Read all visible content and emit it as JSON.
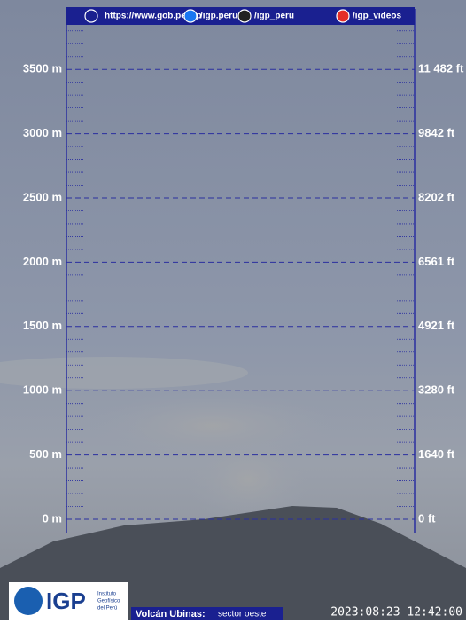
{
  "header": {
    "links": [
      "https://www.gob.pe/igp",
      "/igp.peru",
      "/igp_peru",
      "/igp_videos"
    ]
  },
  "scale": {
    "left": [
      "0 m",
      "500 m",
      "1000 m",
      "1500 m",
      "2000 m",
      "2500 m",
      "3000 m",
      "3500 m"
    ],
    "right": [
      "0 ft",
      "1640 ft",
      "3280 ft",
      "4921 ft",
      "6561 ft",
      "8202 ft",
      "9842 ft",
      "11 482 ft"
    ]
  },
  "footer": {
    "logo": "IGP",
    "institute": [
      "Instituto",
      "Geofísico",
      "del Perú"
    ],
    "volcano": "Volcán Ubinas:",
    "sector": "sector oeste",
    "timestamp": "2023:08:23 12:42:00"
  }
}
